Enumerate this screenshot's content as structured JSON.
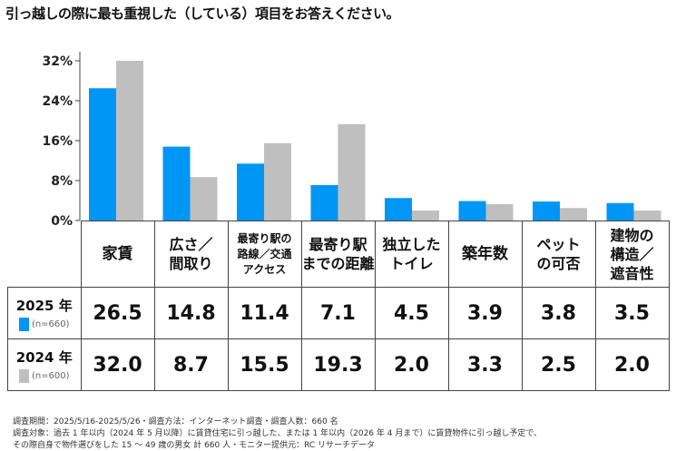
{
  "title": "引っ越しの際に最も重視した（している）項目をお答えください。",
  "chart_data": {
    "type": "bar",
    "title": "引っ越しの際に最も重視した（している）項目をお答えください。",
    "categories": [
      "家賃",
      "広さ／間取り",
      "最寄り駅の路線／交通アクセス",
      "最寄り駅までの距離",
      "独立したトイレ",
      "築年数",
      "ペットの可否",
      "建物の構造／遮音性"
    ],
    "category_lines": [
      [
        "家賃"
      ],
      [
        "広さ／",
        "間取り"
      ],
      [
        "最寄り駅の",
        "路線／交通",
        "アクセス"
      ],
      [
        "最寄り駅",
        "までの距離"
      ],
      [
        "独立した",
        "トイレ"
      ],
      [
        "築年数"
      ],
      [
        "ペット",
        "の可否"
      ],
      [
        "建物の",
        "構造／",
        "遮音性"
      ]
    ],
    "series": [
      {
        "name": "2025 年",
        "n": "(n=660)",
        "color": "#0096F5",
        "values": [
          26.5,
          14.8,
          11.4,
          7.1,
          4.5,
          3.9,
          3.8,
          3.5
        ],
        "labels": [
          "26.5",
          "14.8",
          "11.4",
          "7.1",
          "4.5",
          "3.9",
          "3.8",
          "3.5"
        ]
      },
      {
        "name": "2024 年",
        "n": "(n=600)",
        "color": "#BFBFBF",
        "values": [
          32.0,
          8.7,
          15.5,
          19.3,
          2.0,
          3.3,
          2.5,
          2.0
        ],
        "labels": [
          "32.0",
          "8.7",
          "15.5",
          "19.3",
          "2.0",
          "3.3",
          "2.5",
          "2.0"
        ]
      }
    ],
    "yticks": [
      "0%",
      "8%",
      "16%",
      "24%",
      "32%"
    ],
    "ytick_values": [
      0,
      8,
      16,
      24,
      32
    ],
    "ylim": [
      0,
      32
    ],
    "grid": false
  },
  "footer": [
    "調査期間：2025/5/16-2025/5/26・調査方法：インターネット調査・調査人数：660 名",
    "調査対象：過去 1 年以内（2024 年 5 月以降）に賃貸住宅に引っ越した、または 1 年以内（2026 年 4 月まで）に賃貸物件に引っ越し予定で、",
    "その際自身で物件選びをした 15 ～ 49 歳の男女 計 660 人・モニター提供元：RC リサーチデータ"
  ]
}
